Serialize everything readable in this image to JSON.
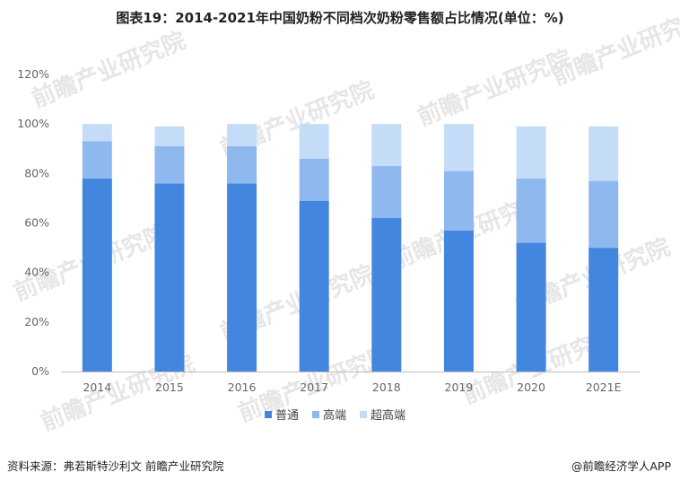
{
  "title": "图表19：2014-2021年中国奶粉不同档次奶粉零售额占比情况(单位：%)",
  "footer": {
    "source": "资料来源：弗若斯特沙利文 前瞻产业研究院",
    "brand": "@前瞻经济学人APP"
  },
  "watermark_text": "前瞻产业研究院",
  "chart_data": {
    "type": "bar",
    "stacked": true,
    "categories": [
      "2014",
      "2015",
      "2016",
      "2017",
      "2018",
      "2019",
      "2020",
      "2021E"
    ],
    "series": [
      {
        "name": "普通",
        "color": "#4386e0",
        "values": [
          78,
          76,
          76,
          69,
          62,
          57,
          52,
          50
        ]
      },
      {
        "name": "高端",
        "color": "#8fb8ef",
        "values": [
          15,
          15,
          15,
          17,
          21,
          24,
          26,
          27
        ]
      },
      {
        "name": "超高端",
        "color": "#c4dcf8",
        "values": [
          7,
          8,
          9,
          14,
          17,
          19,
          21,
          22
        ]
      }
    ],
    "y_ticks": [
      "0%",
      "20%",
      "40%",
      "60%",
      "80%",
      "100%",
      "120%"
    ],
    "ylim": [
      0,
      120
    ],
    "grid": false,
    "legend_position": "bottom"
  }
}
